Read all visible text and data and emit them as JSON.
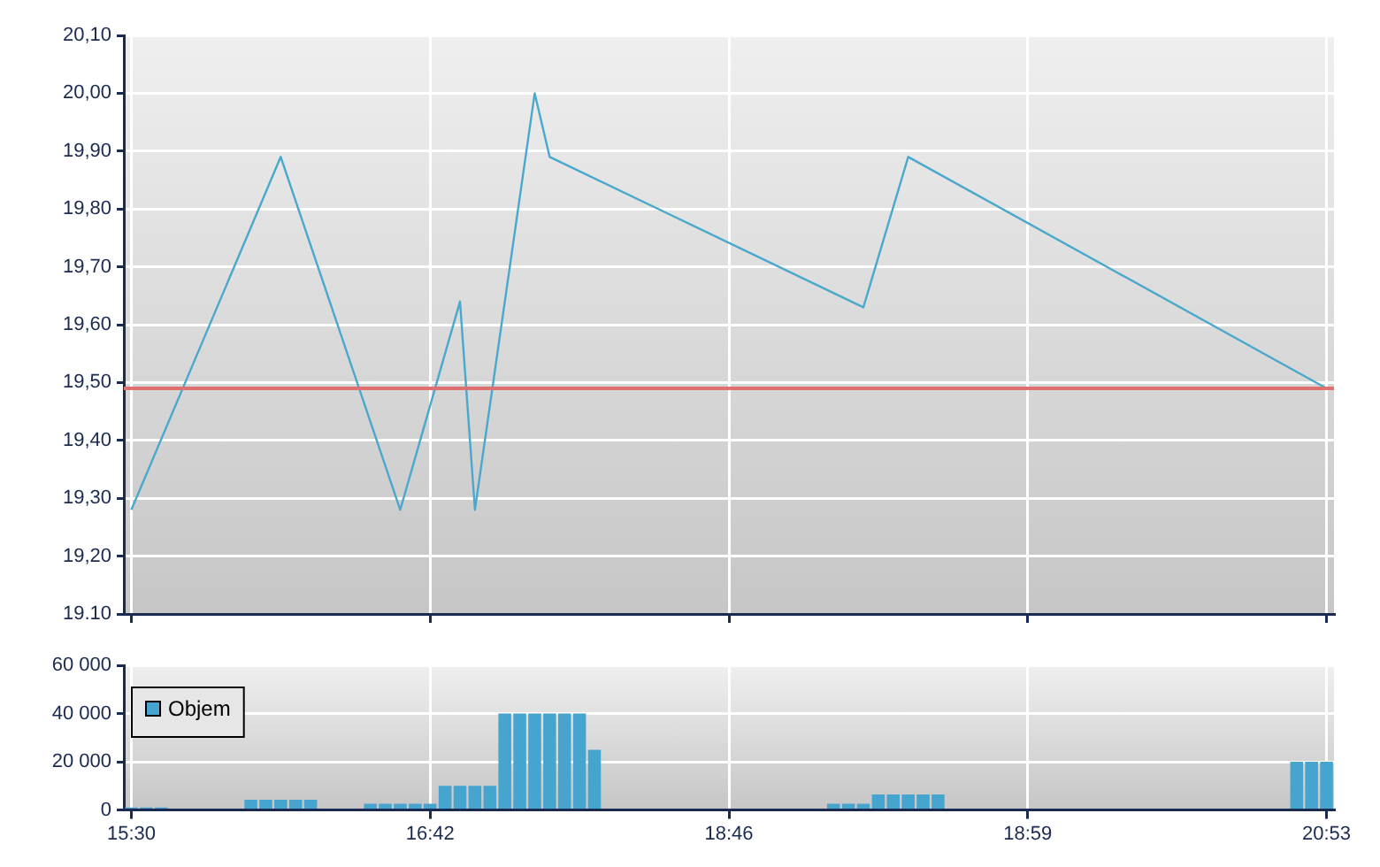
{
  "chart_data": [
    {
      "type": "line",
      "categories": [
        null,
        null,
        null,
        null,
        null,
        null,
        null,
        null,
        null,
        null,
        null,
        null,
        null,
        null,
        null,
        null,
        null,
        null,
        null,
        null,
        null,
        null,
        null,
        null,
        null,
        null,
        null,
        null,
        null,
        null,
        null,
        null,
        null,
        null,
        null,
        null,
        null,
        null,
        null,
        null,
        null,
        null,
        null,
        null,
        null,
        null,
        null,
        null,
        null,
        null,
        null,
        null,
        null,
        null,
        null,
        null,
        null,
        null,
        null,
        null,
        null,
        null,
        null,
        null,
        null,
        null,
        null,
        null,
        null,
        null,
        null,
        null,
        null,
        null,
        null,
        null,
        null,
        null,
        null,
        null,
        null
      ],
      "ylim": [
        19.1,
        20.1
      ],
      "yticks": [
        {
          "value": 19.1,
          "label": "19.10"
        },
        {
          "value": 19.2,
          "label": "19,20"
        },
        {
          "value": 19.3,
          "label": "19,30"
        },
        {
          "value": 19.4,
          "label": "19,40"
        },
        {
          "value": 19.5,
          "label": "19,50"
        },
        {
          "value": 19.6,
          "label": "19,60"
        },
        {
          "value": 19.7,
          "label": "19,70"
        },
        {
          "value": 19.8,
          "label": "19,80"
        },
        {
          "value": 19.9,
          "label": "19,90"
        },
        {
          "value": 20.0,
          "label": "20,00"
        },
        {
          "value": 20.1,
          "label": "20,10"
        }
      ],
      "grid": true,
      "tick_labels": "y",
      "marker": "none",
      "series": [
        {
          "color": "#4aa8cc",
          "values": [
            19.28,
            null,
            null,
            null,
            null,
            null,
            null,
            null,
            null,
            null,
            19.89,
            null,
            null,
            null,
            null,
            null,
            null,
            null,
            19.28,
            null,
            null,
            null,
            19.64,
            19.28,
            null,
            null,
            null,
            20.0,
            19.89,
            null,
            null,
            null,
            null,
            null,
            null,
            null,
            null,
            null,
            null,
            null,
            null,
            null,
            null,
            null,
            null,
            null,
            null,
            null,
            null,
            19.63,
            null,
            null,
            19.89,
            null,
            null,
            null,
            null,
            null,
            null,
            null,
            null,
            null,
            null,
            null,
            null,
            null,
            null,
            null,
            null,
            null,
            null,
            null,
            null,
            null,
            null,
            null,
            null,
            null,
            null,
            null,
            19.49
          ]
        }
      ],
      "ref_lines": [
        {
          "axis": "y",
          "value": 19.49,
          "color": "#e07070"
        }
      ]
    },
    {
      "type": "bar",
      "categories": [
        "15:30",
        null,
        null,
        null,
        null,
        null,
        null,
        null,
        null,
        null,
        null,
        null,
        null,
        null,
        null,
        null,
        null,
        null,
        null,
        null,
        "16:42",
        null,
        null,
        null,
        null,
        null,
        null,
        null,
        null,
        null,
        null,
        null,
        null,
        null,
        null,
        null,
        null,
        null,
        null,
        null,
        "18:46",
        null,
        null,
        null,
        null,
        null,
        null,
        null,
        null,
        null,
        null,
        null,
        null,
        null,
        null,
        null,
        null,
        null,
        null,
        null,
        "18:59",
        null,
        null,
        null,
        null,
        null,
        null,
        null,
        null,
        null,
        null,
        null,
        null,
        null,
        null,
        null,
        null,
        null,
        null,
        null,
        "20:53"
      ],
      "ylim": [
        0,
        60000
      ],
      "yticks": [
        {
          "value": 0,
          "label": "0"
        },
        {
          "value": 20000,
          "label": "20 000"
        },
        {
          "value": 40000,
          "label": "40 000"
        },
        {
          "value": 60000,
          "label": "60 000"
        }
      ],
      "grid": true,
      "legend": "top left",
      "series": [
        {
          "name": "Objem",
          "color": "#45a5cf",
          "values": [
            1000,
            1000,
            1000,
            null,
            null,
            null,
            null,
            null,
            4300,
            4300,
            4300,
            4300,
            4300,
            null,
            null,
            null,
            2600,
            2600,
            2600,
            2600,
            2600,
            10000,
            10000,
            10000,
            10000,
            40000,
            40000,
            40000,
            40000,
            40000,
            40000,
            25000,
            null,
            null,
            null,
            null,
            null,
            null,
            null,
            null,
            null,
            null,
            null,
            null,
            null,
            null,
            null,
            2600,
            2600,
            2600,
            6500,
            6500,
            6500,
            6500,
            6500,
            null,
            null,
            null,
            null,
            null,
            null,
            null,
            null,
            null,
            null,
            null,
            null,
            null,
            null,
            null,
            null,
            null,
            null,
            null,
            null,
            null,
            null,
            null,
            20000,
            20000,
            20000
          ]
        }
      ]
    }
  ]
}
